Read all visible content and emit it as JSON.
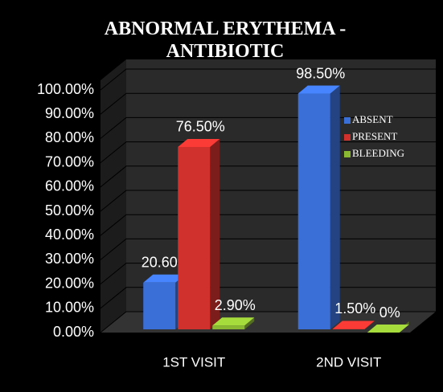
{
  "chart_data": {
    "type": "bar3d",
    "title": "ABNORMAL ERYTHEMA - ANTIBIOTIC",
    "categories": [
      "1ST VISIT",
      "2ND VISIT"
    ],
    "series": [
      {
        "name": "ABSENT",
        "color": "#3a6fd8",
        "values": [
          20.6,
          98.5
        ],
        "value_labels": [
          "20.60%",
          "98.50%"
        ]
      },
      {
        "name": "PRESENT",
        "color": "#d0312d",
        "values": [
          76.5,
          1.5
        ],
        "value_labels": [
          "76.50%",
          "1.50%"
        ]
      },
      {
        "name": "BLEEDING",
        "color": "#8ab832",
        "values": [
          2.9,
          0
        ],
        "value_labels": [
          "2.90%",
          "0%"
        ]
      }
    ],
    "ylim": [
      0,
      100
    ],
    "yticks": [
      {
        "value": 0,
        "label": "0.00%"
      },
      {
        "value": 10,
        "label": "10.00%"
      },
      {
        "value": 20,
        "label": "20.00%"
      },
      {
        "value": 30,
        "label": "30.00%"
      },
      {
        "value": 40,
        "label": "40.00%"
      },
      {
        "value": 50,
        "label": "50.00%"
      },
      {
        "value": 60,
        "label": "60.00%"
      },
      {
        "value": 70,
        "label": "70.00%"
      },
      {
        "value": 80,
        "label": "80.00%"
      },
      {
        "value": 90,
        "label": "90.00%"
      },
      {
        "value": 100,
        "label": "100.00%"
      }
    ],
    "grid": true
  }
}
